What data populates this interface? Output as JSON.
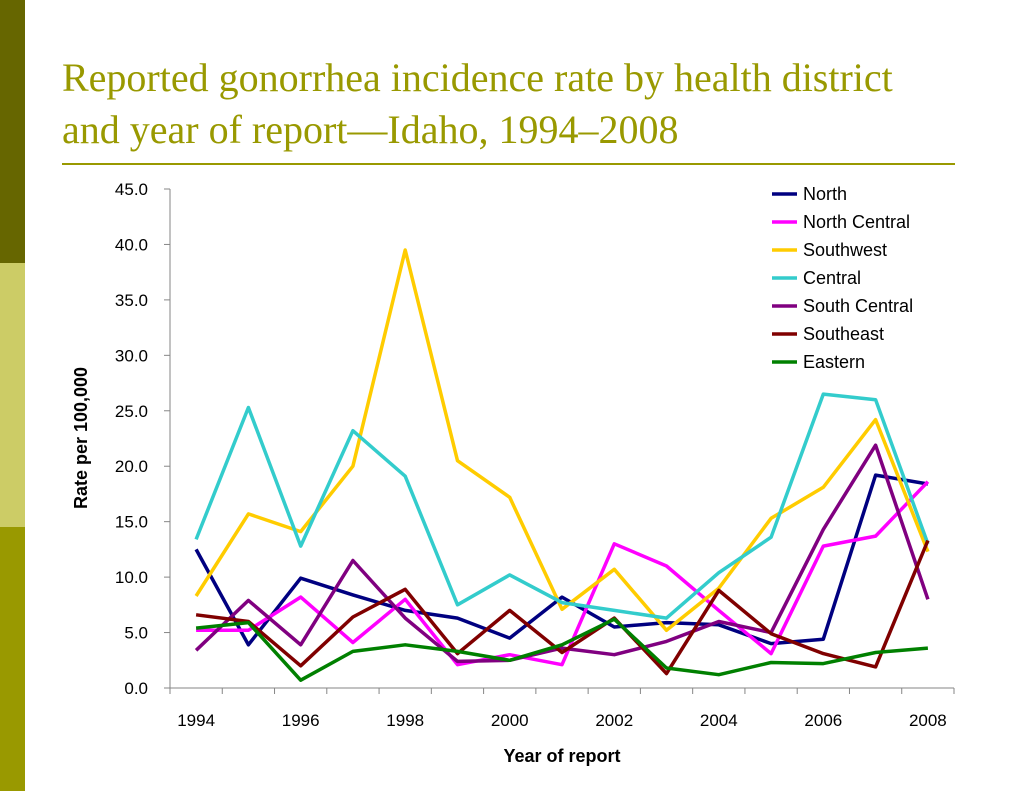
{
  "slide": {
    "title_line1": "Reported gonorrhea incidence rate by health district",
    "title_line2": "and year of report—Idaho, 1994–2008",
    "colors": {
      "title": "#999900",
      "bar_dark": "#666600",
      "bar_light": "#cccc66",
      "bar_mid": "#999900"
    }
  },
  "chart_data": {
    "type": "line",
    "xlabel": "Year of report",
    "ylabel": "Rate per 100,000",
    "x": [
      1994,
      1995,
      1996,
      1997,
      1998,
      1999,
      2000,
      2001,
      2002,
      2003,
      2004,
      2005,
      2006,
      2007,
      2008
    ],
    "x_tick_labels": [
      "1994",
      "1996",
      "1998",
      "2000",
      "2002",
      "2004",
      "2006",
      "2008"
    ],
    "y_tick_labels": [
      "0.0",
      "5.0",
      "10.0",
      "15.0",
      "20.0",
      "25.0",
      "30.0",
      "35.0",
      "40.0",
      "45.0"
    ],
    "ylim": [
      0,
      45
    ],
    "grid": false,
    "legend_position": "top-right",
    "series": [
      {
        "name": "North",
        "color": "#000080",
        "values": [
          12.5,
          3.9,
          9.9,
          8.4,
          7.0,
          6.3,
          4.5,
          8.2,
          5.5,
          5.9,
          5.7,
          4.0,
          4.4,
          19.2,
          18.4
        ]
      },
      {
        "name": "North Central",
        "color": "#ff00ff",
        "values": [
          5.2,
          5.2,
          8.2,
          4.1,
          8.0,
          2.1,
          3.0,
          2.1,
          13.0,
          11.0,
          7.0,
          3.1,
          12.8,
          13.7,
          18.6
        ]
      },
      {
        "name": "Southwest",
        "color": "#ffcc00",
        "values": [
          8.3,
          15.7,
          14.1,
          20.0,
          39.5,
          20.5,
          17.2,
          7.1,
          10.7,
          5.2,
          9.0,
          15.3,
          18.1,
          24.2,
          12.3
        ]
      },
      {
        "name": "Central",
        "color": "#33cccc",
        "values": [
          13.4,
          25.3,
          12.8,
          23.2,
          19.1,
          7.5,
          10.2,
          7.7,
          7.0,
          6.3,
          10.4,
          13.6,
          26.5,
          26.0,
          13.0
        ]
      },
      {
        "name": "South Central",
        "color": "#800080",
        "values": [
          3.4,
          7.9,
          3.9,
          11.5,
          6.3,
          2.4,
          2.5,
          3.6,
          3.0,
          4.2,
          6.0,
          5.0,
          14.3,
          21.9,
          8.0
        ]
      },
      {
        "name": "Southeast",
        "color": "#800000",
        "values": [
          6.6,
          6.0,
          2.0,
          6.4,
          8.9,
          3.1,
          7.0,
          3.2,
          6.3,
          1.3,
          8.8,
          4.9,
          3.1,
          1.9,
          13.3
        ]
      },
      {
        "name": "Eastern",
        "color": "#008000",
        "values": [
          5.4,
          5.9,
          0.7,
          3.3,
          3.9,
          3.3,
          2.5,
          3.9,
          6.2,
          1.8,
          1.2,
          2.3,
          2.2,
          3.2,
          3.6
        ]
      }
    ]
  }
}
